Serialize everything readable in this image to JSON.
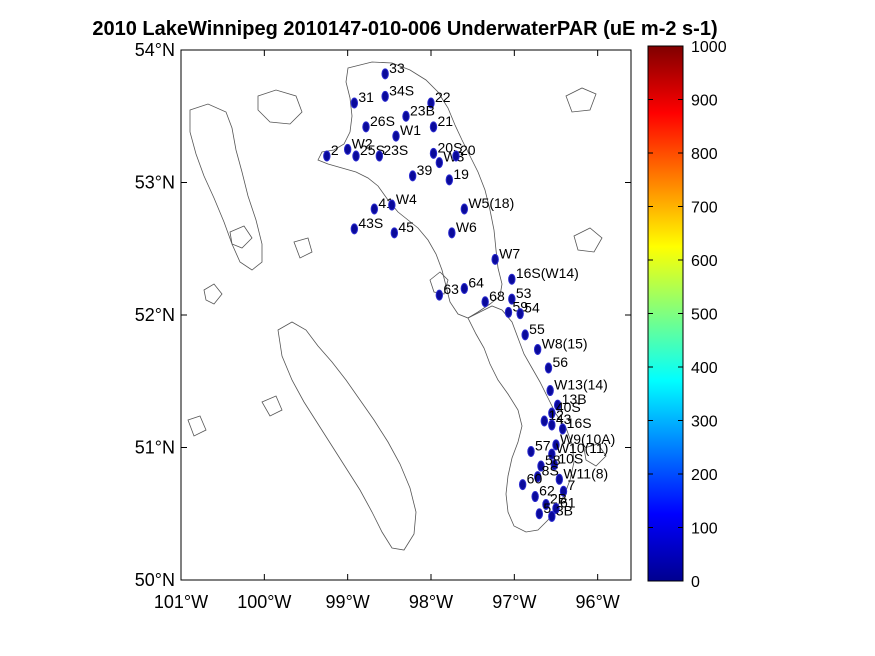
{
  "title": "2010 LakeWinnipeg 2010147-010-006 UnderwaterPAR (uE m-2 s-1)",
  "chart_data": {
    "type": "scatter",
    "title": "2010 LakeWinnipeg 2010147-010-006 UnderwaterPAR (uE m-2 s-1)",
    "x_axis": {
      "range": [
        -101,
        -95.6
      ],
      "ticks": [
        -101,
        -100,
        -99,
        -98,
        -97,
        -96
      ],
      "labels": [
        "101°W",
        "100°W",
        "99°W",
        "98°W",
        "97°W",
        "96°W"
      ]
    },
    "y_axis": {
      "range": [
        50,
        54
      ],
      "ticks": [
        50,
        51,
        52,
        53,
        54
      ],
      "labels": [
        "50°N",
        "51°N",
        "52°N",
        "53°N",
        "54°N"
      ]
    },
    "colorbar": {
      "range": [
        0,
        1000
      ],
      "ticks": [
        0,
        100,
        200,
        300,
        400,
        500,
        600,
        700,
        800,
        900,
        1000
      ],
      "colormap": "jet",
      "placement": "right"
    },
    "stations": [
      {
        "label": "33",
        "lon": -98.55,
        "lat": 53.82
      },
      {
        "label": "31",
        "lon": -98.92,
        "lat": 53.6
      },
      {
        "label": "34S",
        "lon": -98.55,
        "lat": 53.65
      },
      {
        "label": "22",
        "lon": -98.0,
        "lat": 53.6
      },
      {
        "label": "23B",
        "lon": -98.3,
        "lat": 53.5
      },
      {
        "label": "26S",
        "lon": -98.78,
        "lat": 53.42
      },
      {
        "label": "W1",
        "lon": -98.42,
        "lat": 53.35
      },
      {
        "label": "21",
        "lon": -97.97,
        "lat": 53.42
      },
      {
        "label": "2",
        "lon": -99.25,
        "lat": 53.2
      },
      {
        "label": "W2",
        "lon": -99.0,
        "lat": 53.25
      },
      {
        "label": "25S",
        "lon": -98.9,
        "lat": 53.2
      },
      {
        "label": "23S",
        "lon": -98.62,
        "lat": 53.2
      },
      {
        "label": "20S",
        "lon": -97.97,
        "lat": 53.22
      },
      {
        "label": "W3",
        "lon": -97.9,
        "lat": 53.15
      },
      {
        "label": "20",
        "lon": -97.7,
        "lat": 53.2
      },
      {
        "label": "39",
        "lon": -98.22,
        "lat": 53.05
      },
      {
        "label": "19",
        "lon": -97.78,
        "lat": 53.02
      },
      {
        "label": "41",
        "lon": -98.68,
        "lat": 52.8
      },
      {
        "label": "W4",
        "lon": -98.47,
        "lat": 52.83
      },
      {
        "label": "W5(18)",
        "lon": -97.6,
        "lat": 52.8
      },
      {
        "label": "43S",
        "lon": -98.92,
        "lat": 52.65
      },
      {
        "label": "45",
        "lon": -98.44,
        "lat": 52.62
      },
      {
        "label": "W6",
        "lon": -97.75,
        "lat": 52.62
      },
      {
        "label": "W7",
        "lon": -97.23,
        "lat": 52.42
      },
      {
        "label": "16S(W14)",
        "lon": -97.03,
        "lat": 52.27
      },
      {
        "label": "63",
        "lon": -97.9,
        "lat": 52.15
      },
      {
        "label": "64",
        "lon": -97.6,
        "lat": 52.2
      },
      {
        "label": "68",
        "lon": -97.35,
        "lat": 52.1
      },
      {
        "label": "53",
        "lon": -97.03,
        "lat": 52.12
      },
      {
        "label": "59",
        "lon": -97.07,
        "lat": 52.02
      },
      {
        "label": "54",
        "lon": -96.93,
        "lat": 52.01
      },
      {
        "label": "55",
        "lon": -96.87,
        "lat": 51.85
      },
      {
        "label": "W8(15)",
        "lon": -96.72,
        "lat": 51.74
      },
      {
        "label": "56",
        "lon": -96.59,
        "lat": 51.6
      },
      {
        "label": "W13(14)",
        "lon": -96.57,
        "lat": 51.43
      },
      {
        "label": "13B",
        "lon": -96.48,
        "lat": 51.32
      },
      {
        "label": "40S",
        "lon": -96.55,
        "lat": 51.26
      },
      {
        "label": "12",
        "lon": -96.64,
        "lat": 51.2
      },
      {
        "label": "43",
        "lon": -96.55,
        "lat": 51.17
      },
      {
        "label": "16S",
        "lon": -96.42,
        "lat": 51.14
      },
      {
        "label": "W9(10A)",
        "lon": -96.5,
        "lat": 51.02
      },
      {
        "label": "57",
        "lon": -96.8,
        "lat": 50.97
      },
      {
        "label": "W10(11)",
        "lon": -96.55,
        "lat": 50.95
      },
      {
        "label": "10S",
        "lon": -96.52,
        "lat": 50.87
      },
      {
        "label": "58",
        "lon": -96.68,
        "lat": 50.86
      },
      {
        "label": "W11(8)",
        "lon": -96.46,
        "lat": 50.76
      },
      {
        "label": "8S",
        "lon": -96.72,
        "lat": 50.78
      },
      {
        "label": "60",
        "lon": -96.9,
        "lat": 50.72
      },
      {
        "label": "7",
        "lon": -96.41,
        "lat": 50.67
      },
      {
        "label": "62",
        "lon": -96.75,
        "lat": 50.63
      },
      {
        "label": "2B",
        "lon": -96.62,
        "lat": 50.57
      },
      {
        "label": "61",
        "lon": -96.5,
        "lat": 50.54
      },
      {
        "label": "5",
        "lon": -96.7,
        "lat": 50.5
      },
      {
        "label": "3B",
        "lon": -96.55,
        "lat": 50.48
      }
    ]
  }
}
